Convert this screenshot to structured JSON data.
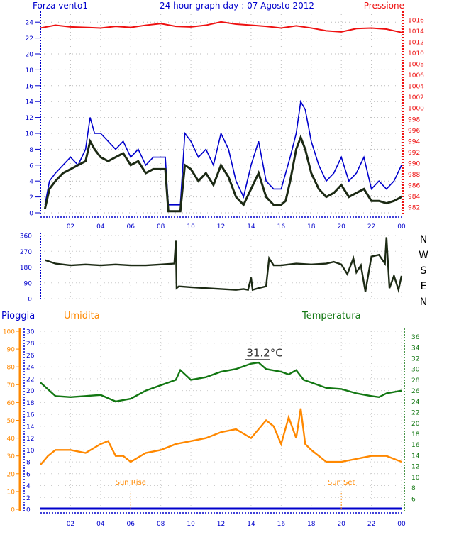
{
  "chart_data": [
    {
      "type": "line",
      "title": "24 hour graph day : 07 Agosto 2012",
      "left_axis_label": "Forza vento1",
      "right_axis_label": "Pressione",
      "x_ticks": [
        "02",
        "04",
        "06",
        "08",
        "10",
        "12",
        "14",
        "16",
        "18",
        "20",
        "22",
        "00"
      ],
      "ylim_left": [
        0,
        25
      ],
      "y_ticks_left": [
        0,
        2,
        4,
        6,
        8,
        10,
        12,
        14,
        16,
        18,
        20,
        22,
        24
      ],
      "ylim_right": [
        981,
        1017
      ],
      "y_ticks_right": [
        982,
        984,
        986,
        988,
        990,
        992,
        994,
        996,
        998,
        1000,
        1002,
        1004,
        1006,
        1008,
        1010,
        1012,
        1014,
        1016
      ],
      "colors": {
        "gust": "#0000cc",
        "average": "#1c2a14",
        "pressure": "#ee1111",
        "axis_left": "#0000cc",
        "axis_right": "#ee1111"
      },
      "series": [
        {
          "name": "gust",
          "axis": "left",
          "x": [
            0.3,
            0.6,
            1,
            1.5,
            2,
            2.5,
            3,
            3.3,
            3.6,
            4,
            4.5,
            5,
            5.5,
            6,
            6.5,
            7,
            7.5,
            8,
            8.3,
            8.5,
            8.8,
            9,
            9.3,
            9.6,
            10,
            10.5,
            11,
            11.5,
            12,
            12.5,
            13,
            13.5,
            14,
            14.5,
            15,
            15.5,
            16,
            16.3,
            16.6,
            17,
            17.3,
            17.6,
            18,
            18.5,
            19,
            19.5,
            20,
            20.5,
            21,
            21.5,
            22,
            22.5,
            23,
            23.5,
            24
          ],
          "y": [
            1,
            4,
            5,
            6,
            7,
            6,
            8,
            12,
            10,
            10,
            9,
            8,
            9,
            7,
            8,
            6,
            7,
            7,
            7,
            1,
            1,
            1,
            1,
            10,
            9,
            7,
            8,
            6,
            10,
            8,
            4,
            2,
            6,
            9,
            4,
            3,
            3,
            5,
            7,
            10,
            14,
            13,
            9,
            6,
            4,
            5,
            7,
            4,
            5,
            7,
            3,
            4,
            3,
            4,
            6
          ]
        },
        {
          "name": "average",
          "axis": "left",
          "x": [
            0.3,
            0.6,
            1,
            1.5,
            2,
            2.5,
            3,
            3.3,
            3.6,
            4,
            4.5,
            5,
            5.5,
            6,
            6.5,
            7,
            7.5,
            8,
            8.3,
            8.5,
            8.8,
            9,
            9.3,
            9.6,
            10,
            10.5,
            11,
            11.5,
            12,
            12.5,
            13,
            13.5,
            14,
            14.5,
            15,
            15.5,
            16,
            16.3,
            16.6,
            17,
            17.3,
            17.6,
            18,
            18.5,
            19,
            19.5,
            20,
            20.5,
            21,
            21.5,
            22,
            22.5,
            23,
            23.5,
            24
          ],
          "y": [
            0.5,
            3,
            4,
            5,
            5.5,
            6,
            6.5,
            9,
            8,
            7,
            6.5,
            7,
            7.5,
            6,
            6.5,
            5,
            5.5,
            5.5,
            5.5,
            0.2,
            0.2,
            0.2,
            0.2,
            6,
            5.5,
            4,
            5,
            3.5,
            6,
            4.5,
            2,
            1,
            3,
            5,
            2,
            1,
            1,
            1.5,
            4,
            8,
            9.5,
            8,
            5,
            3,
            2,
            2.5,
            3.5,
            2,
            2.5,
            3,
            1.5,
            1.5,
            1.2,
            1.5,
            2
          ]
        },
        {
          "name": "pressure",
          "axis": "right",
          "x": [
            0,
            1,
            2,
            3,
            4,
            5,
            6,
            7,
            8,
            9,
            10,
            11,
            12,
            13,
            14,
            15,
            16,
            17,
            18,
            19,
            20,
            21,
            22,
            23,
            24
          ],
          "y": [
            1014.5,
            1015,
            1014.7,
            1014.6,
            1014.5,
            1014.8,
            1014.6,
            1015,
            1015.3,
            1014.8,
            1014.7,
            1015,
            1015.6,
            1015.2,
            1015,
            1014.8,
            1014.5,
            1014.9,
            1014.5,
            1014,
            1013.8,
            1014.4,
            1014.5,
            1014.3,
            1013.7
          ]
        }
      ]
    },
    {
      "type": "line",
      "title": "",
      "series_name": "wind direction",
      "x_ticks": [],
      "ylim": [
        0,
        360
      ],
      "y_ticks": [
        0,
        90,
        180,
        270,
        360
      ],
      "compass": [
        "N",
        "W",
        "S",
        "E",
        "N"
      ],
      "color": "#1c2a14",
      "x": [
        0.3,
        1,
        2,
        3,
        4,
        5,
        6,
        7,
        8,
        8.9,
        9,
        9.05,
        9.2,
        10,
        11,
        12,
        13,
        13.5,
        13.8,
        14,
        14.1,
        14.5,
        15,
        15.2,
        15.5,
        16,
        17,
        18,
        19,
        19.5,
        20,
        20.4,
        20.8,
        21,
        21.3,
        21.6,
        22,
        22.5,
        22.9,
        23,
        23.2,
        23.5,
        23.8,
        24
      ],
      "y": [
        220,
        200,
        190,
        195,
        190,
        195,
        190,
        190,
        195,
        200,
        330,
        60,
        70,
        65,
        60,
        55,
        50,
        55,
        50,
        120,
        50,
        60,
        70,
        230,
        190,
        190,
        200,
        195,
        200,
        210,
        195,
        140,
        230,
        150,
        190,
        40,
        240,
        250,
        200,
        350,
        60,
        130,
        50,
        130
      ]
    },
    {
      "type": "line",
      "title": "",
      "left_axis_label_1": "Pioggia",
      "left_axis_label_2": "Umidita",
      "right_axis_label": "Temperatura",
      "x_ticks": [
        "02",
        "04",
        "06",
        "08",
        "10",
        "12",
        "14",
        "16",
        "18",
        "20",
        "22",
        "00"
      ],
      "ylim_rain": [
        0,
        100
      ],
      "y_ticks_rain": [
        0,
        10,
        20,
        30,
        40,
        50,
        60,
        70,
        80,
        90,
        100
      ],
      "ylim_humidity": [
        0,
        30
      ],
      "y_ticks_humidity": [
        0,
        2,
        4,
        6,
        8,
        10,
        12,
        14,
        16,
        18,
        20,
        22,
        24,
        26,
        28,
        30
      ],
      "ylim_temperature": [
        4,
        37
      ],
      "y_ticks_temperature": [
        6,
        8,
        10,
        12,
        14,
        16,
        18,
        20,
        22,
        24,
        26,
        28,
        30,
        32,
        34,
        36
      ],
      "annotations": [
        {
          "text": "31.2°C",
          "x": 14.9,
          "y": 32.3
        },
        {
          "text": "Sun Rise",
          "x": 6.0
        },
        {
          "text": "Sun Set",
          "x": 20.0
        }
      ],
      "colors": {
        "rain": "#0000cc",
        "humidity": "#ff8800",
        "temperature": "#127712",
        "sun": "#ff8800"
      },
      "series": [
        {
          "name": "Temperatura",
          "axis": "temperature",
          "x": [
            0,
            1,
            2,
            3,
            4,
            5,
            6,
            7,
            8,
            9,
            9.3,
            10,
            11,
            12,
            13,
            14,
            14.5,
            15,
            16,
            16.5,
            17,
            17.5,
            18,
            19,
            20,
            21,
            22,
            22.5,
            23,
            24
          ],
          "y": [
            27.5,
            25,
            24.8,
            25,
            25.2,
            24,
            24.5,
            26,
            27,
            28,
            29.8,
            28,
            28.5,
            29.5,
            30,
            31,
            31.2,
            30,
            29.5,
            29,
            29.8,
            28,
            27.5,
            26.5,
            26.3,
            25.5,
            25,
            24.8,
            25.5,
            26
          ]
        },
        {
          "name": "Umidita",
          "axis": "humidity",
          "x": [
            0,
            0.5,
            1,
            2,
            3,
            4,
            4.5,
            5,
            5.5,
            6,
            7,
            8,
            9,
            10,
            11,
            12,
            13,
            14,
            15,
            15.5,
            16,
            16.5,
            17,
            17.3,
            17.6,
            18,
            18.5,
            19,
            19.5,
            20,
            21,
            22,
            23,
            24
          ],
          "y": [
            7.5,
            9,
            10,
            10,
            9.5,
            11,
            11.5,
            9,
            9,
            8,
            9.5,
            10,
            11,
            11.5,
            12,
            13,
            13.5,
            12,
            15,
            14,
            11,
            15.5,
            12,
            17,
            11,
            10,
            9,
            8,
            8,
            8,
            8.5,
            9,
            9,
            8
          ]
        },
        {
          "name": "Pioggia",
          "axis": "rain",
          "x": [
            0,
            24
          ],
          "y": [
            0,
            0
          ]
        }
      ]
    }
  ],
  "x_hours": [
    "02",
    "04",
    "06",
    "08",
    "10",
    "12",
    "14",
    "16",
    "18",
    "20",
    "22",
    "00"
  ]
}
